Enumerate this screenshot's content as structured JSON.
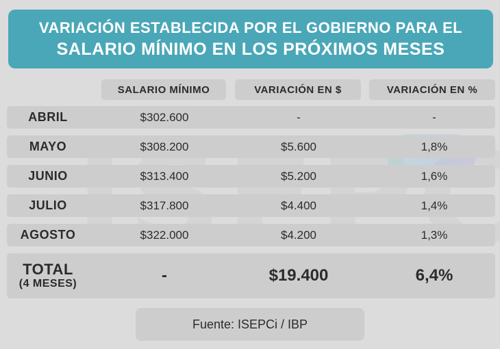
{
  "title": {
    "line1": "VARIACIÓN ESTABLECIDA POR EL GOBIERNO PARA EL",
    "line2": "SALARIO MÍNIMO EN LOS PRÓXIMOS MESES"
  },
  "watermark": "ISEPCi",
  "columns": [
    "SALARIO MÍNIMO",
    "VARIACIÓN EN $",
    "VARIACIÓN EN %"
  ],
  "rows": [
    {
      "month": "ABRIL",
      "salary": "$302.600",
      "var_abs": "-",
      "var_pct": "-"
    },
    {
      "month": "MAYO",
      "salary": "$308.200",
      "var_abs": "$5.600",
      "var_pct": "1,8%"
    },
    {
      "month": "JUNIO",
      "salary": "$313.400",
      "var_abs": "$5.200",
      "var_pct": "1,6%"
    },
    {
      "month": "JULIO",
      "salary": "$317.800",
      "var_abs": "$4.400",
      "var_pct": "1,4%"
    },
    {
      "month": "AGOSTO",
      "salary": "$322.000",
      "var_abs": "$4.200",
      "var_pct": "1,3%"
    }
  ],
  "total": {
    "label": "TOTAL",
    "sublabel": "(4 MESES)",
    "salary": "-",
    "var_abs": "$19.400",
    "var_pct": "6,4%"
  },
  "source": "Fuente: ISEPCi / IBP",
  "colors": {
    "title_bg": "#4aa7b8",
    "row_bg": "#cdcdcd",
    "page_bg": "#dcdcdc"
  }
}
